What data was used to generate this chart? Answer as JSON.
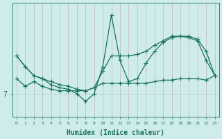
{
  "xlabel": "Humidex (Indice chaleur)",
  "bg_color": "#ceecea",
  "line_color": "#1a7060",
  "grid_color_v": "#c8b8b8",
  "grid_color_h": "#b8c8c8",
  "x": [
    0,
    1,
    2,
    3,
    4,
    5,
    6,
    7,
    8,
    9,
    10,
    11,
    12,
    13,
    14,
    15,
    16,
    17,
    18,
    19,
    20,
    21,
    22,
    23
  ],
  "line1": [
    9.5,
    8.8,
    8.2,
    8.0,
    7.6,
    7.4,
    7.3,
    7.0,
    6.5,
    7.0,
    8.8,
    12.2,
    9.2,
    7.8,
    8.0,
    9.0,
    9.8,
    10.4,
    10.7,
    10.8,
    10.7,
    10.5,
    9.2,
    8.2
  ],
  "line2": [
    9.5,
    8.8,
    8.2,
    8.0,
    7.8,
    7.6,
    7.5,
    7.3,
    7.2,
    7.4,
    8.5,
    9.5,
    9.5,
    9.5,
    9.6,
    9.8,
    10.2,
    10.5,
    10.8,
    10.8,
    10.8,
    10.6,
    9.8,
    8.2
  ],
  "line3": [
    8.0,
    7.5,
    7.8,
    7.5,
    7.3,
    7.2,
    7.2,
    7.2,
    7.2,
    7.4,
    7.7,
    7.7,
    7.7,
    7.7,
    7.7,
    7.7,
    7.8,
    7.9,
    7.9,
    8.0,
    8.0,
    8.0,
    7.9,
    8.2
  ],
  "ytick_val": 7,
  "xlim": [
    0,
    23
  ],
  "ylim": [
    5.5,
    13.0
  ],
  "marker": "+",
  "markersize": 4,
  "linewidth": 0.9
}
